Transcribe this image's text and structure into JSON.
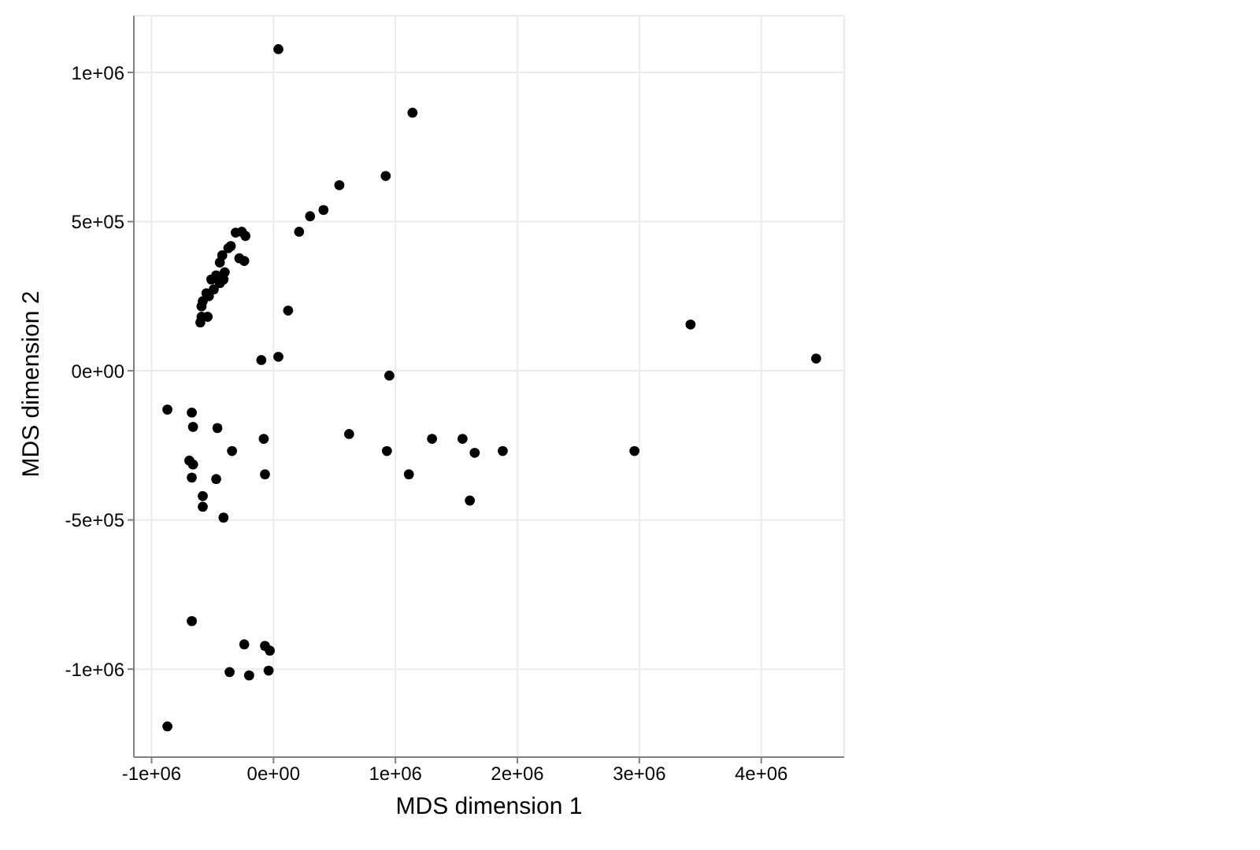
{
  "chart_data": {
    "type": "scatter",
    "xlabel": "MDS dimension 1",
    "ylabel": "MDS dimension 2",
    "color": "#000000",
    "marker": "circle",
    "grid": true,
    "xlim": [
      -1145000,
      4680000
    ],
    "ylim": [
      -1295000,
      1190000
    ],
    "xticks": [
      {
        "value": -1000000,
        "label": "-1e+06"
      },
      {
        "value": 0,
        "label": "0e+00"
      },
      {
        "value": 1000000,
        "label": "1e+06"
      },
      {
        "value": 2000000,
        "label": "2e+06"
      },
      {
        "value": 3000000,
        "label": "3e+06"
      },
      {
        "value": 4000000,
        "label": "4e+06"
      }
    ],
    "yticks": [
      {
        "value": -1000000,
        "label": "-1e+06"
      },
      {
        "value": -500000,
        "label": "-5e+05"
      },
      {
        "value": 0,
        "label": "0e+00"
      },
      {
        "value": 500000,
        "label": "5e+05"
      },
      {
        "value": 1000000,
        "label": "1e+06"
      }
    ],
    "x": [
      40000,
      1140000,
      920000,
      540000,
      410000,
      300000,
      210000,
      120000,
      -100000,
      40000,
      950000,
      3420000,
      4450000,
      -310000,
      -260000,
      -230000,
      -350000,
      -370000,
      -280000,
      -240000,
      -420000,
      -440000,
      -510000,
      -410000,
      -440000,
      -490000,
      -530000,
      -580000,
      -590000,
      -540000,
      -590000,
      -600000,
      -470000,
      -550000,
      -400000,
      -870000,
      -670000,
      -660000,
      -460000,
      -80000,
      -340000,
      -690000,
      -660000,
      -670000,
      -470000,
      -70000,
      -580000,
      -580000,
      -410000,
      620000,
      930000,
      1300000,
      1110000,
      1550000,
      1650000,
      1880000,
      1610000,
      2960000,
      -670000,
      -240000,
      -70000,
      -30000,
      -360000,
      -200000,
      -40000,
      -870000
    ],
    "values": [
      1078000,
      865000,
      653000,
      622000,
      539000,
      518000,
      466000,
      202000,
      36000,
      47000,
      -16000,
      155000,
      41000,
      463000,
      466000,
      452000,
      418000,
      411000,
      377000,
      368000,
      387000,
      363000,
      306000,
      306000,
      294000,
      273000,
      250000,
      233000,
      216000,
      181000,
      181000,
      162000,
      320000,
      260000,
      330000,
      -130000,
      -140000,
      -188000,
      -192000,
      -228000,
      -269000,
      -301000,
      -314000,
      -358000,
      -363000,
      -347000,
      -420000,
      -456000,
      -492000,
      -212000,
      -269000,
      -228000,
      -347000,
      -228000,
      -275000,
      -269000,
      -435000,
      -269000,
      -839000,
      -917000,
      -922000,
      -938000,
      -1010000,
      -1021000,
      -1005000,
      -1192000
    ]
  }
}
